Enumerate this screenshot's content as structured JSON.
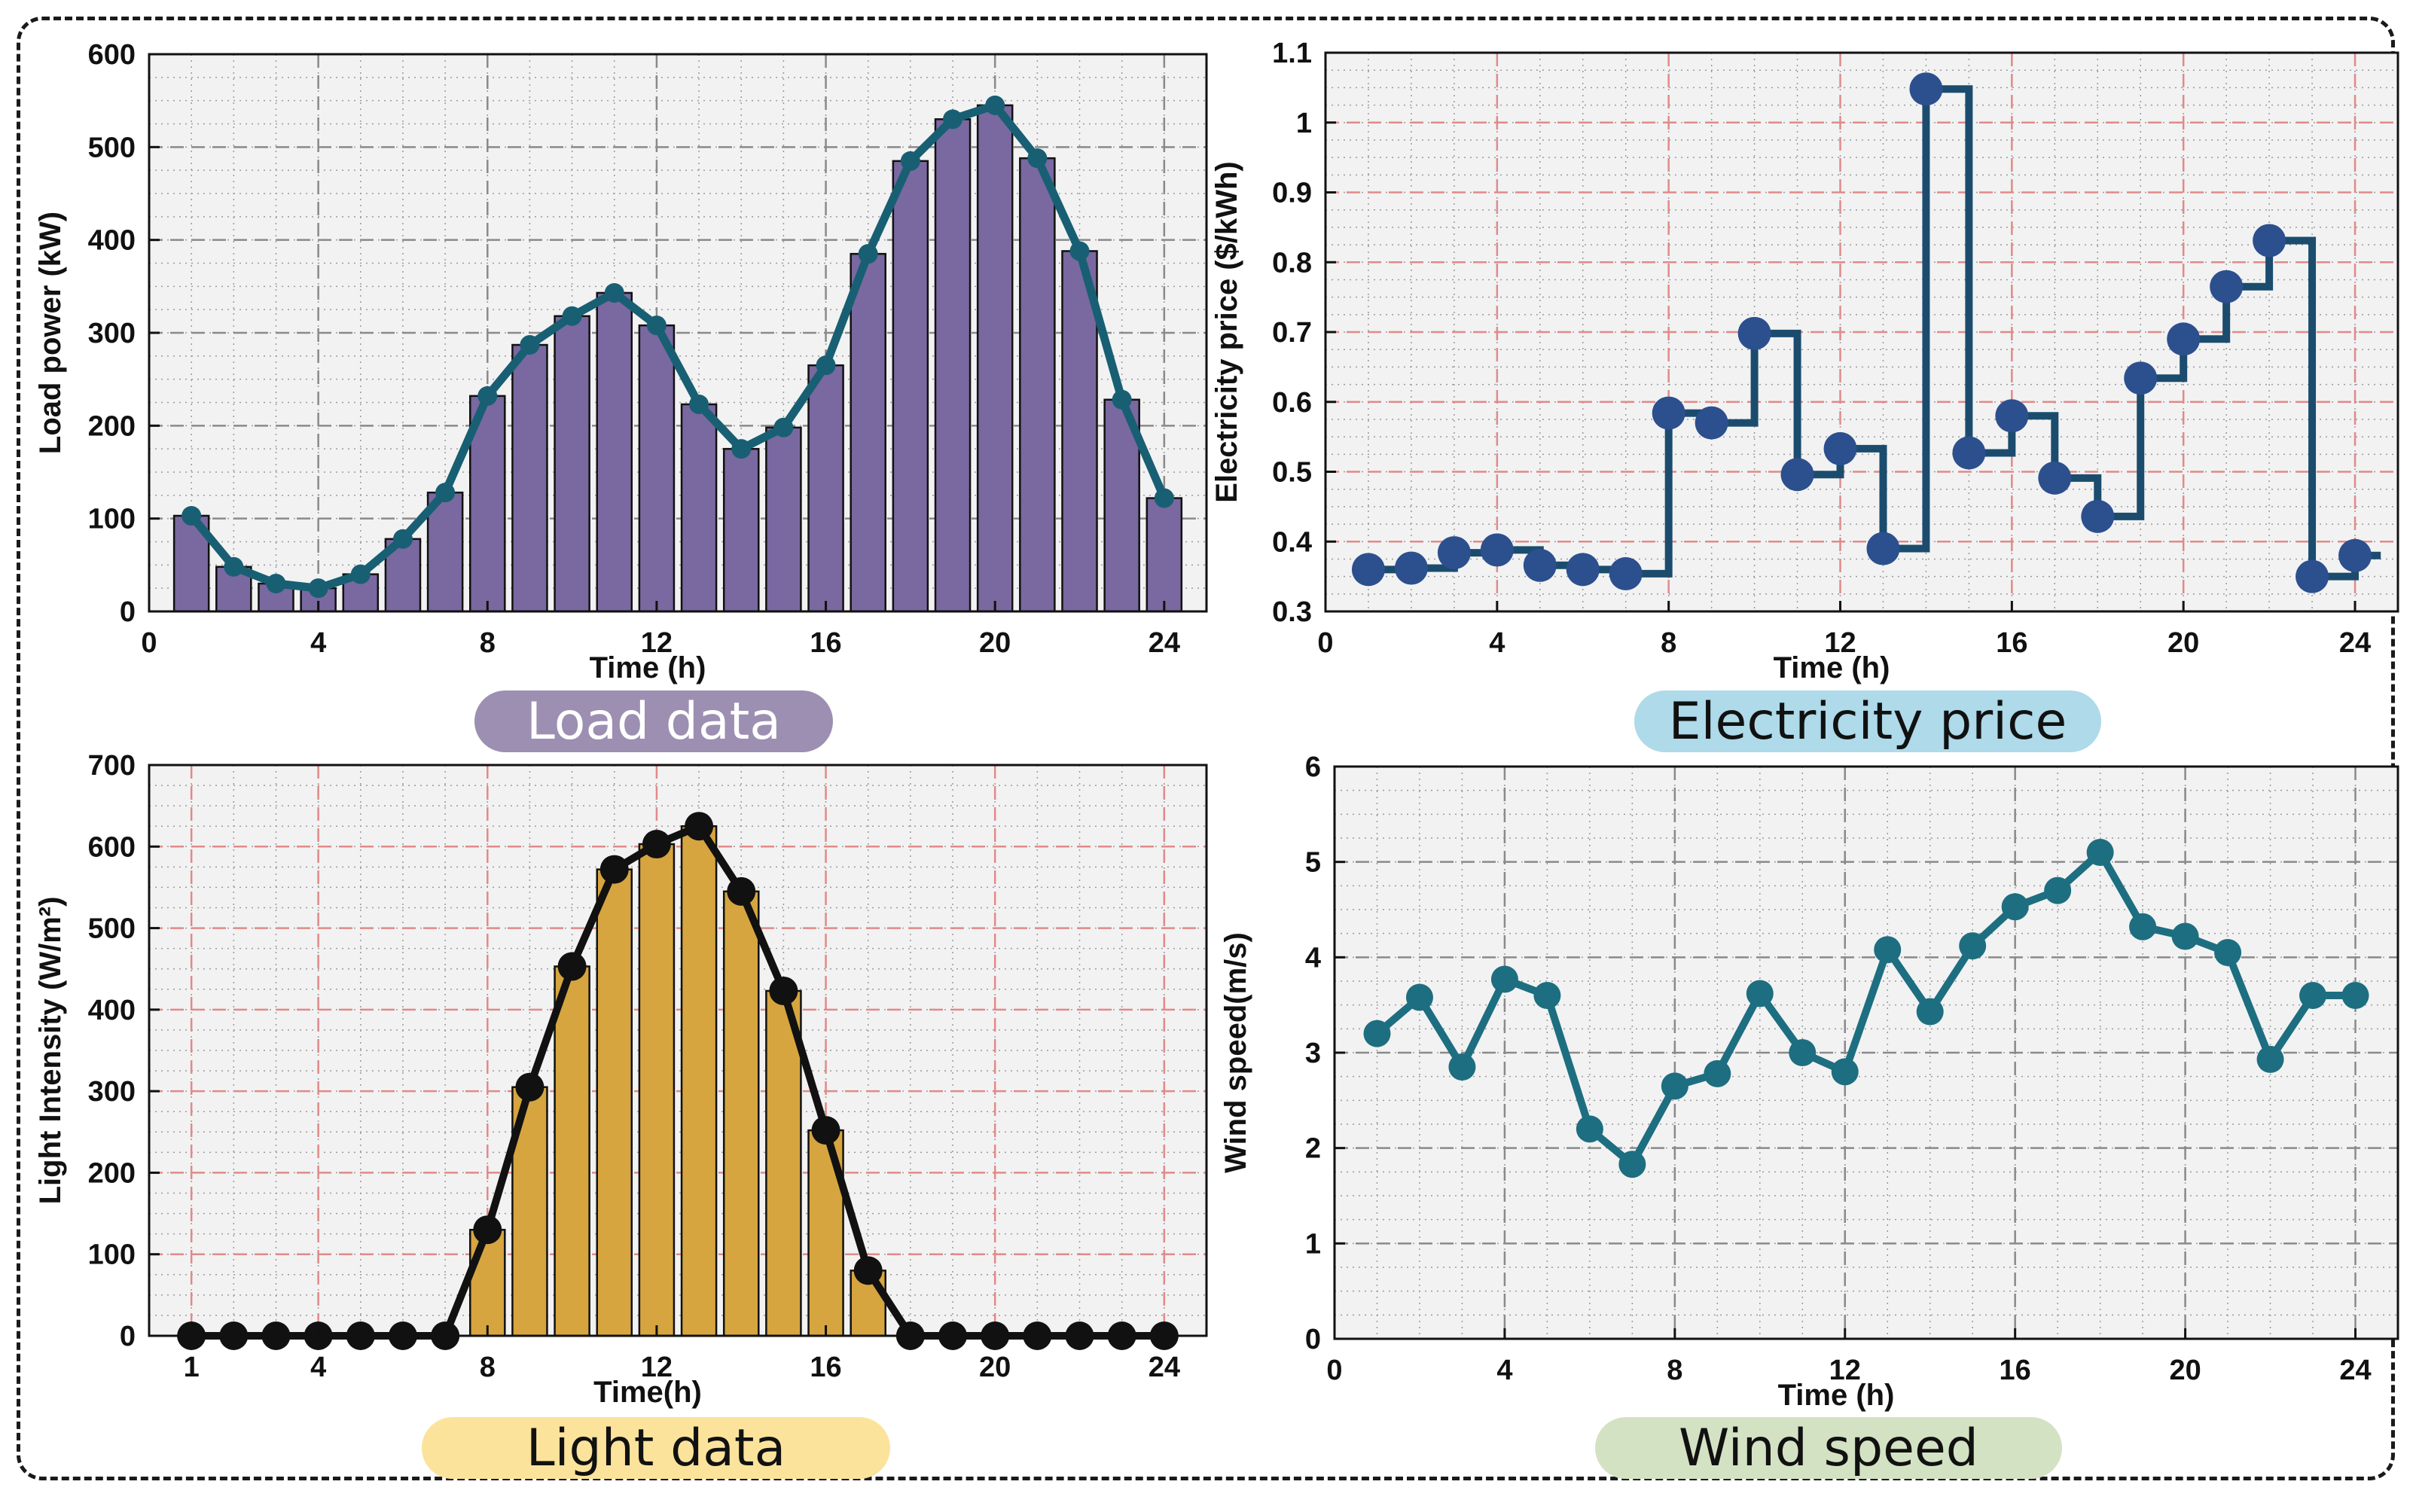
{
  "colors": {
    "plot_bg": "#f2f2f2",
    "load_bar": "#7a68a0",
    "load_line": "#185f73",
    "price_line": "#1b4c6e",
    "price_marker": "#2c4f8e",
    "light_bar": "#d6a53f",
    "light_line": "#111111",
    "wind_line": "#1d6e80",
    "pill_load": "#9c8fb2",
    "pill_price": "#aedaea",
    "pill_light": "#fbe39b",
    "pill_wind": "#d4e2c4"
  },
  "captions": {
    "load": "Load data",
    "price": "Electricity price",
    "light": "Light data",
    "wind": "Wind speed"
  },
  "chart_data": [
    {
      "id": "load",
      "type": "bar",
      "title": "Load data",
      "xlabel": "Time (h)",
      "ylabel": "Load power (kW)",
      "xlim": [
        0,
        25
      ],
      "ylim": [
        0,
        600
      ],
      "xticks": [
        0,
        4,
        8,
        12,
        16,
        20,
        24
      ],
      "yticks": [
        0,
        100,
        200,
        300,
        400,
        500,
        600
      ],
      "x": [
        1,
        2,
        3,
        4,
        5,
        6,
        7,
        8,
        9,
        10,
        11,
        12,
        13,
        14,
        15,
        16,
        17,
        18,
        19,
        20,
        21,
        22,
        23,
        24
      ],
      "values": [
        103,
        48,
        30,
        25,
        40,
        78,
        128,
        232,
        287,
        318,
        343,
        308,
        223,
        175,
        198,
        265,
        385,
        485,
        530,
        545,
        488,
        388,
        228,
        122
      ],
      "series_line": "line with markers over bars"
    },
    {
      "id": "price",
      "type": "line",
      "style": "step",
      "title": "Electricity price",
      "xlabel": "Time (h)",
      "ylabel": "Electricity price ($/kWh)",
      "xlim": [
        0,
        25
      ],
      "ylim": [
        0.3,
        1.1
      ],
      "xticks": [
        0,
        4,
        8,
        12,
        16,
        20,
        24
      ],
      "yticks": [
        0.3,
        0.4,
        0.5,
        0.6,
        0.7,
        0.8,
        0.9,
        1,
        1.1
      ],
      "ytick_labels": [
        "0.3",
        "0.4",
        "0.5",
        "0.6",
        "0.7",
        "0.8",
        "0.9",
        "1",
        "1.1"
      ],
      "x": [
        1,
        2,
        3,
        4,
        5,
        6,
        7,
        8,
        9,
        10,
        11,
        12,
        13,
        14,
        15,
        16,
        17,
        18,
        19,
        20,
        21,
        22,
        23,
        24
      ],
      "values": [
        0.36,
        0.362,
        0.384,
        0.388,
        0.366,
        0.36,
        0.354,
        0.584,
        0.57,
        0.698,
        0.496,
        0.533,
        0.39,
        1.048,
        0.527,
        0.58,
        0.491,
        0.436,
        0.634,
        0.69,
        0.765,
        0.831,
        0.35,
        0.38
      ]
    },
    {
      "id": "light",
      "type": "bar",
      "title": "Light data",
      "xlabel": "Time(h)",
      "ylabel": "Light Intensity (W/m²)",
      "xlim": [
        0,
        25
      ],
      "ylim": [
        0,
        700
      ],
      "xticks": [
        1,
        4,
        8,
        12,
        16,
        20,
        24
      ],
      "yticks": [
        0,
        100,
        200,
        300,
        400,
        500,
        600,
        700
      ],
      "x": [
        1,
        2,
        3,
        4,
        5,
        6,
        7,
        8,
        9,
        10,
        11,
        12,
        13,
        14,
        15,
        16,
        17,
        18,
        19,
        20,
        21,
        22,
        23,
        24
      ],
      "values": [
        0,
        0,
        0,
        0,
        0,
        0,
        0,
        130,
        305,
        453,
        572,
        603,
        625,
        545,
        423,
        252,
        80,
        0,
        0,
        0,
        0,
        0,
        0,
        0
      ],
      "series_line": "line with markers over bars"
    },
    {
      "id": "wind",
      "type": "line",
      "title": "Wind speed",
      "xlabel": "Time (h)",
      "ylabel": "Wind speed(m/s)",
      "xlim": [
        0,
        25
      ],
      "ylim": [
        0,
        6
      ],
      "xticks": [
        0,
        4,
        8,
        12,
        16,
        20,
        24
      ],
      "yticks": [
        0,
        1,
        2,
        3,
        4,
        5,
        6
      ],
      "x": [
        1,
        2,
        3,
        4,
        5,
        6,
        7,
        8,
        9,
        10,
        11,
        12,
        13,
        14,
        15,
        16,
        17,
        18,
        19,
        20,
        21,
        22,
        23,
        24
      ],
      "values": [
        3.2,
        3.58,
        2.85,
        3.77,
        3.6,
        2.2,
        1.83,
        2.65,
        2.78,
        3.62,
        3.0,
        2.8,
        4.08,
        3.43,
        4.12,
        4.53,
        4.7,
        5.1,
        4.32,
        4.22,
        4.05,
        2.93,
        3.6,
        3.6
      ]
    }
  ]
}
